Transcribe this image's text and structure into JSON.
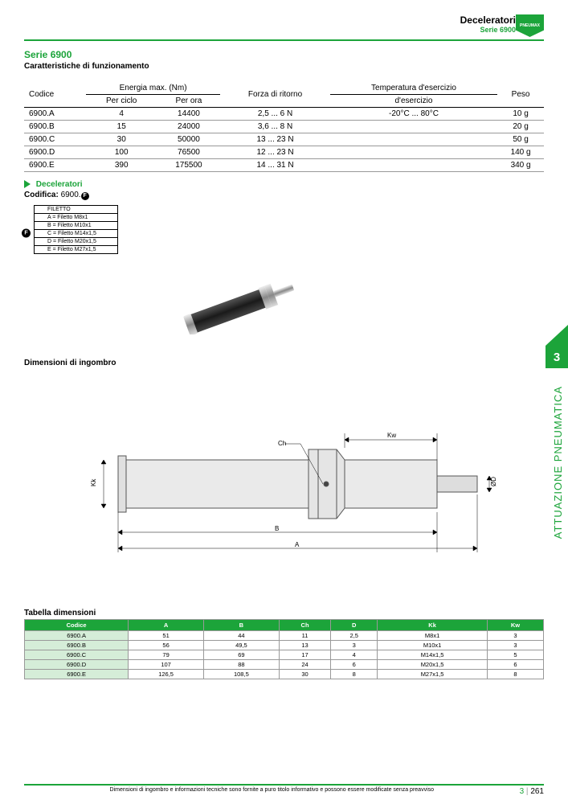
{
  "header": {
    "title": "Deceleratori",
    "sub": "Serie 6900",
    "logo_text": "PNEUMAX"
  },
  "serie": {
    "title": "Serie 6900",
    "subtitle": "Caratteristiche di funzionamento"
  },
  "spec": {
    "headers": {
      "codice": "Codice",
      "energia": "Energia max. (Nm)",
      "per_ciclo": "Per ciclo",
      "per_ora": "Per ora",
      "forza": "Forza di ritorno",
      "temp": "Temperatura d'esercizio",
      "peso": "Peso"
    },
    "temp_value": "-20°C ... 80°C",
    "rows": [
      {
        "codice": "6900.A",
        "ciclo": "4",
        "ora": "14400",
        "forza": "2,5 ... 6 N",
        "peso": "10 g"
      },
      {
        "codice": "6900.B",
        "ciclo": "15",
        "ora": "24000",
        "forza": "3,6 ... 8 N",
        "peso": "20 g"
      },
      {
        "codice": "6900.C",
        "ciclo": "30",
        "ora": "50000",
        "forza": "13 ... 23 N",
        "peso": "50 g"
      },
      {
        "codice": "6900.D",
        "ciclo": "100",
        "ora": "76500",
        "forza": "12 ... 23 N",
        "peso": "140 g"
      },
      {
        "codice": "6900.E",
        "ciclo": "390",
        "ora": "175500",
        "forza": "14 ... 31 N",
        "peso": "340 g"
      }
    ]
  },
  "deceleratori_label": "Deceleratori",
  "codifica_label": "Codifica:",
  "codifica_value": "6900.",
  "codifica_dot": "F",
  "filetto": {
    "title": "FILETTO",
    "dot": "F",
    "rows": [
      "A = Filetto M8x1",
      "B = Filetto M10x1",
      "C = Filetto M14x1,5",
      "D = Filetto M20x1,5",
      "E = Filetto M27x1,5"
    ]
  },
  "dim_title": "Dimensioni di ingombro",
  "drawing_labels": {
    "ch": "Ch",
    "kw": "Kw",
    "kk": "Kk",
    "b": "B",
    "a": "A",
    "od": "ØD"
  },
  "side_tab": "3",
  "side_text": "ATTUAZIONE PNEUMATICA",
  "dim_table": {
    "title": "Tabella dimensioni",
    "headers": [
      "Codice",
      "A",
      "B",
      "Ch",
      "D",
      "Kk",
      "Kw"
    ],
    "rows": [
      [
        "6900.A",
        "51",
        "44",
        "11",
        "2,5",
        "M8x1",
        "3"
      ],
      [
        "6900.B",
        "56",
        "49,5",
        "13",
        "3",
        "M10x1",
        "3"
      ],
      [
        "6900.C",
        "79",
        "69",
        "17",
        "4",
        "M14x1,5",
        "5"
      ],
      [
        "6900.D",
        "107",
        "88",
        "24",
        "6",
        "M20x1,5",
        "6"
      ],
      [
        "6900.E",
        "126,5",
        "108,5",
        "30",
        "8",
        "M27x1,5",
        "8"
      ]
    ]
  },
  "footer": {
    "disclaimer": "Dimensioni di ingombro e informazioni tecniche sono fornite a puro titolo informativo e possono essere modificate senza preavviso",
    "section": "3",
    "page": "261"
  },
  "colors": {
    "brand": "#1ca43a",
    "row_tint": "#d5edd8"
  }
}
